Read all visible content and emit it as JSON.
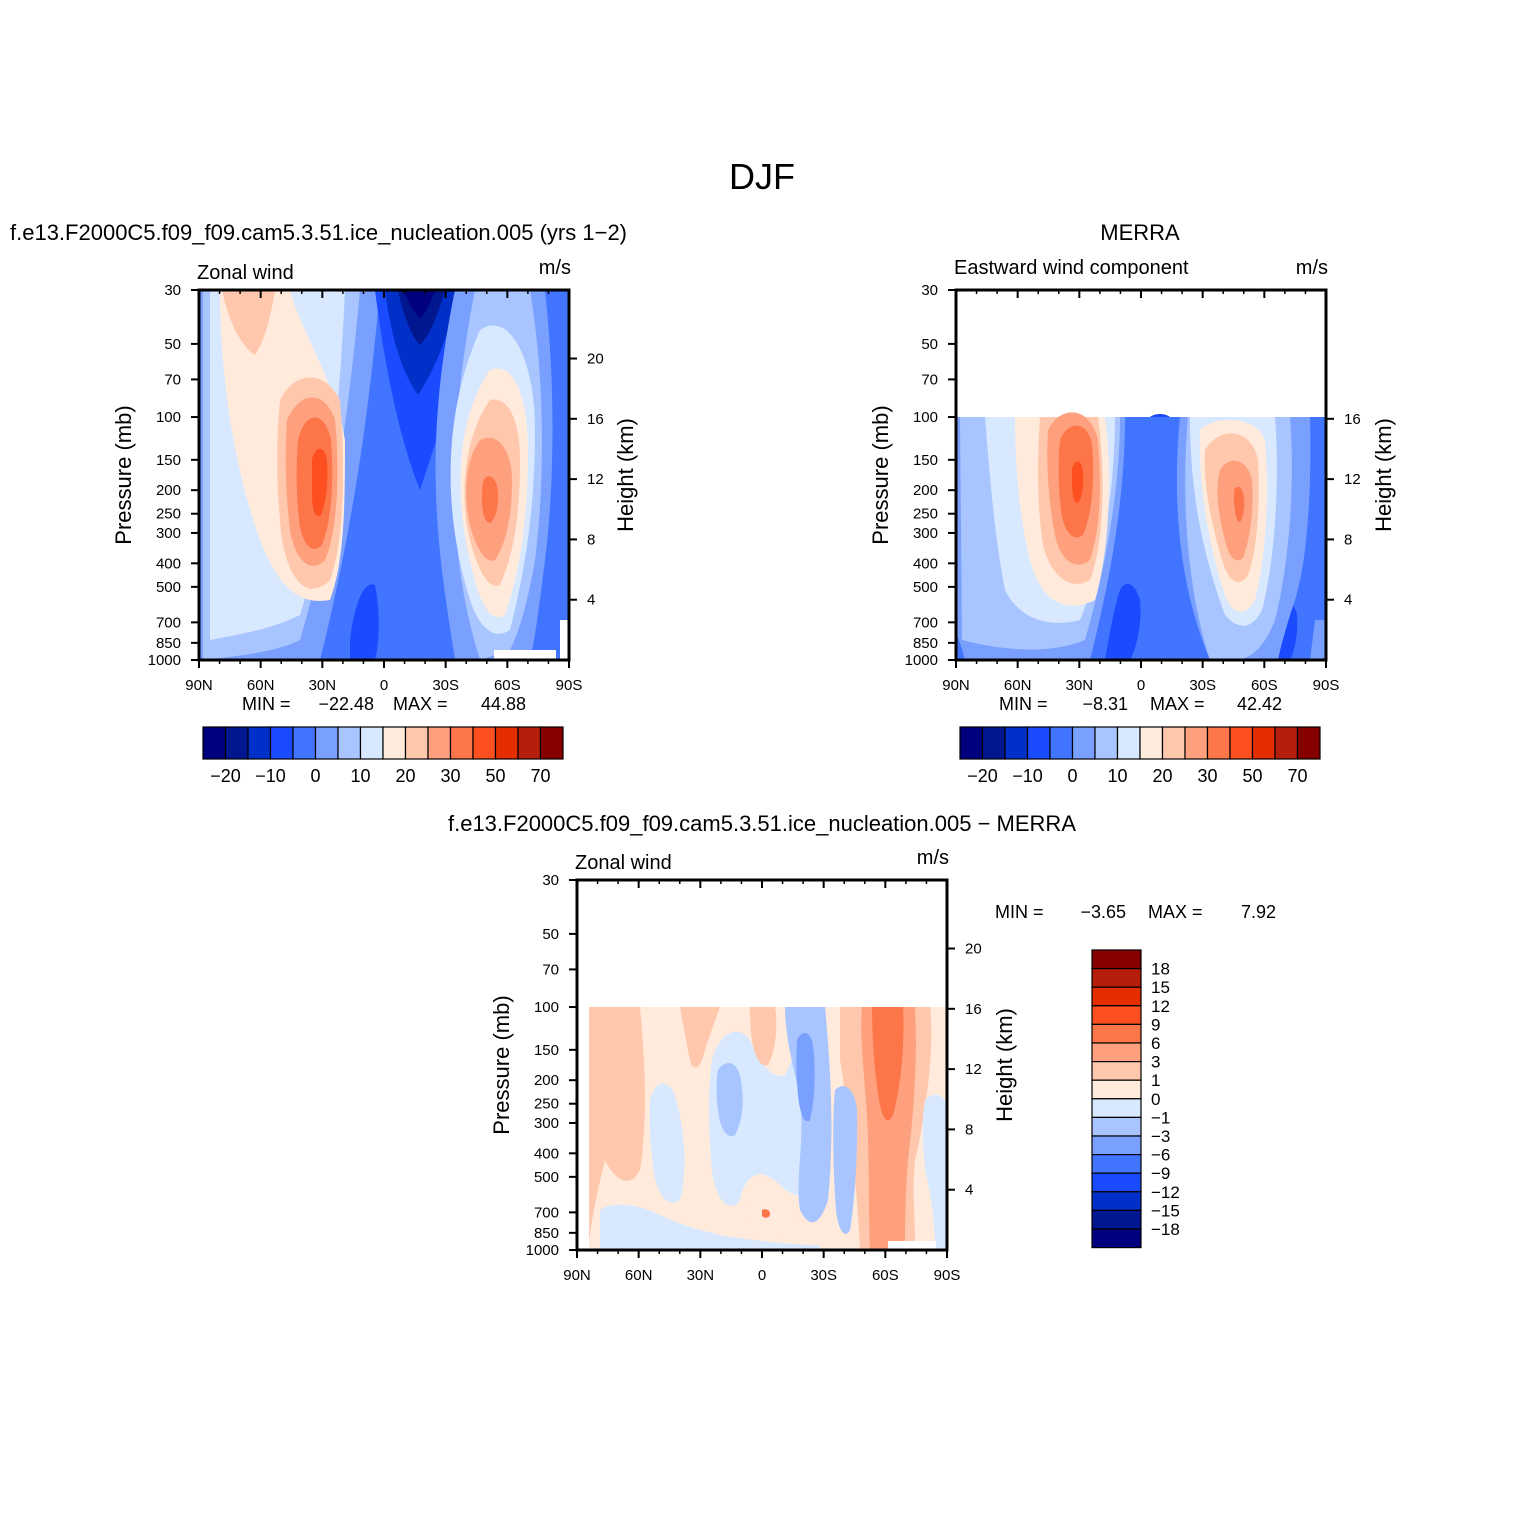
{
  "figure": {
    "title": "DJF"
  },
  "colors": {
    "main": [
      "#00007f",
      "#001790",
      "#0030c8",
      "#1a4bff",
      "#4174ff",
      "#7aa0ff",
      "#a9c5ff",
      "#d8e9ff",
      "#ffeadb",
      "#ffc8ad",
      "#fea07d",
      "#fc7649",
      "#fd4f1f",
      "#e52e00",
      "#b41e0a",
      "#870000"
    ],
    "diff": [
      "#00007f",
      "#001790",
      "#0030c8",
      "#1a4bff",
      "#4174ff",
      "#7aa0ff",
      "#a9c5ff",
      "#d8e9ff",
      "#ffeadb",
      "#ffc8ad",
      "#fea07d",
      "#fc7649",
      "#fd4f1f",
      "#e52e00",
      "#b41e0a",
      "#870000"
    ]
  },
  "chart_data": [
    {
      "type": "contour",
      "panel_title": "f.e13.F2000C5.f09_f09.cam5.3.51.ice_nucleation.005 (yrs 1-2)",
      "field_label": "Zonal wind",
      "units": "m/s",
      "ylabel": "Pressure (mb)",
      "y2label": "Height (km)",
      "x_ticks": [
        "90N",
        "60N",
        "30N",
        "0",
        "30S",
        "60S",
        "90S"
      ],
      "y_ticks": [
        "30",
        "50",
        "70",
        "100",
        "150",
        "200",
        "250",
        "300",
        "400",
        "500",
        "700",
        "850",
        "1000"
      ],
      "y2_ticks": [
        "20",
        "16",
        "12",
        "8",
        "4"
      ],
      "min_label": "MIN =",
      "min_value": "-22.48",
      "max_label": "MAX =",
      "max_value": "44.88",
      "colorbar_labels": [
        "-20",
        "-10",
        "0",
        "10",
        "20",
        "30",
        "50",
        "70"
      ],
      "data_top_mb": 30
    },
    {
      "type": "contour",
      "panel_title": "MERRA",
      "field_label": "Eastward wind component",
      "units": "m/s",
      "ylabel": "Pressure (mb)",
      "y2label": "Height (km)",
      "x_ticks": [
        "90N",
        "60N",
        "30N",
        "0",
        "30S",
        "60S",
        "90S"
      ],
      "y_ticks": [
        "30",
        "50",
        "70",
        "100",
        "150",
        "200",
        "250",
        "300",
        "400",
        "500",
        "700",
        "850",
        "1000"
      ],
      "y2_ticks": [
        "16",
        "12",
        "8",
        "4"
      ],
      "min_label": "MIN =",
      "min_value": "-8.31",
      "max_label": "MAX =",
      "max_value": "42.42",
      "colorbar_labels": [
        "-20",
        "-10",
        "0",
        "10",
        "20",
        "30",
        "50",
        "70"
      ],
      "data_top_mb": 100
    },
    {
      "type": "contour",
      "panel_title": "f.e13.F2000C5.f09_f09.cam5.3.51.ice_nucleation.005 - MERRA",
      "field_label": "Zonal wind",
      "units": "m/s",
      "ylabel": "Pressure (mb)",
      "y2label": "Height (km)",
      "x_ticks": [
        "90N",
        "60N",
        "30N",
        "0",
        "30S",
        "60S",
        "90S"
      ],
      "y_ticks": [
        "30",
        "50",
        "70",
        "100",
        "150",
        "200",
        "250",
        "300",
        "400",
        "500",
        "700",
        "850",
        "1000"
      ],
      "y2_ticks": [
        "20",
        "16",
        "12",
        "8",
        "4"
      ],
      "min_label": "MIN =",
      "min_value": "-3.65",
      "max_label": "MAX =",
      "max_value": "7.92",
      "colorbar_labels": [
        "18",
        "15",
        "12",
        "9",
        "6",
        "3",
        "1",
        "0",
        "-1",
        "-3",
        "-6",
        "-9",
        "-12",
        "-15",
        "-18"
      ],
      "data_top_mb": 100
    }
  ]
}
